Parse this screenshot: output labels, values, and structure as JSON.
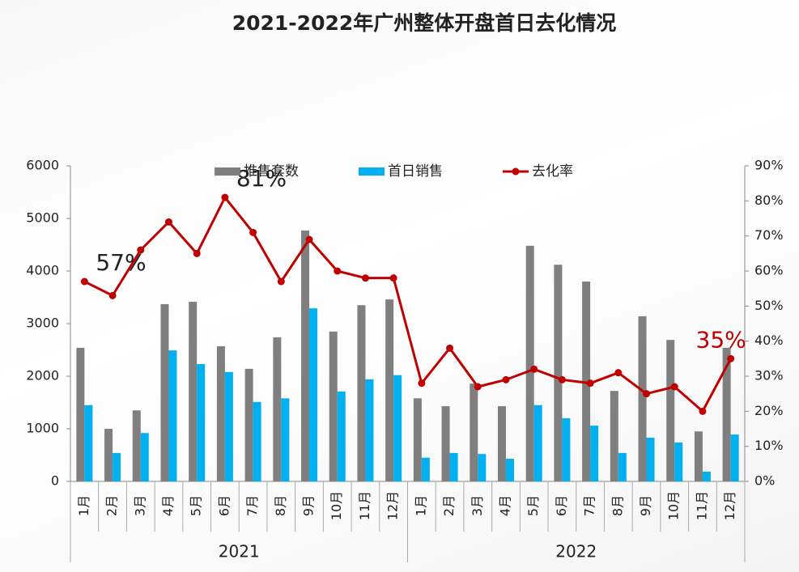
{
  "chart_data": {
    "type": "bar_line",
    "title": "2021-2022年广州整体开盘首日去化情况",
    "categories": [
      "1月",
      "2月",
      "3月",
      "4月",
      "5月",
      "6月",
      "7月",
      "8月",
      "9月",
      "10月",
      "11月",
      "12月",
      "1月",
      "2月",
      "3月",
      "4月",
      "5月",
      "6月",
      "7月",
      "8月",
      "9月",
      "10月",
      "11月",
      "12月"
    ],
    "category_groups": [
      "2021",
      "2022"
    ],
    "series": [
      {
        "name": "推售套数",
        "color": "#7f7f7f",
        "type": "bar",
        "values": [
          2540,
          1000,
          1350,
          3370,
          3415,
          2570,
          2140,
          2740,
          4770,
          2850,
          3350,
          3460,
          1580,
          1430,
          1860,
          1430,
          4480,
          4120,
          3800,
          1720,
          3140,
          2690,
          950,
          2540
        ]
      },
      {
        "name": "首日销售",
        "color": "#00b0f0",
        "type": "bar",
        "values": [
          1450,
          540,
          920,
          2490,
          2230,
          2080,
          1510,
          1580,
          3290,
          1710,
          1940,
          2020,
          450,
          540,
          520,
          430,
          1450,
          1200,
          1060,
          540,
          830,
          740,
          185,
          890
        ]
      },
      {
        "name": "去化率",
        "color": "#c00000",
        "type": "line",
        "axis": "y2",
        "values": [
          57,
          53,
          66,
          74,
          65,
          81,
          71,
          57,
          69,
          60,
          58,
          58,
          28,
          38,
          27,
          29,
          32,
          29,
          28,
          31,
          25,
          27,
          20,
          35
        ],
        "value_labels": [
          "57%",
          null,
          null,
          null,
          null,
          "81%",
          null,
          null,
          null,
          null,
          null,
          null,
          null,
          null,
          null,
          null,
          null,
          null,
          null,
          null,
          null,
          null,
          null,
          "35%"
        ],
        "value_label_colors": [
          "#222222",
          null,
          null,
          null,
          null,
          "#222222",
          null,
          null,
          null,
          null,
          null,
          null,
          null,
          null,
          null,
          null,
          null,
          null,
          null,
          null,
          null,
          null,
          null,
          "#c00000"
        ]
      }
    ],
    "ylim": [
      0,
      6000
    ],
    "yticks": [
      0,
      1000,
      2000,
      3000,
      4000,
      5000,
      6000
    ],
    "y2lim": [
      0,
      90
    ],
    "y2ticks": [
      {
        "value": 0,
        "label": "0%"
      },
      {
        "value": 10,
        "label": "10%"
      },
      {
        "value": 20,
        "label": "20%"
      },
      {
        "value": 30,
        "label": "30%"
      },
      {
        "value": 40,
        "label": "40%"
      },
      {
        "value": 50,
        "label": "50%"
      },
      {
        "value": 60,
        "label": "60%"
      },
      {
        "value": 70,
        "label": "70%"
      },
      {
        "value": 80,
        "label": "80%"
      },
      {
        "value": 90,
        "label": "90%"
      }
    ],
    "legend": "top"
  }
}
